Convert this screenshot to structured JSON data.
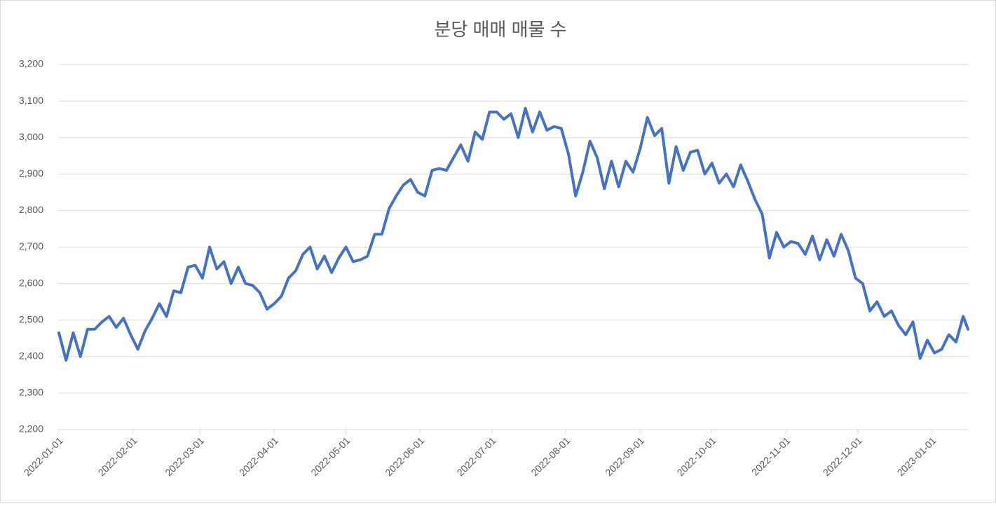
{
  "chart_data": {
    "type": "line",
    "title": "분당 매매 매물 수",
    "x": [
      "2022-01-01",
      "2022-01-04",
      "2022-01-07",
      "2022-01-10",
      "2022-01-13",
      "2022-01-16",
      "2022-01-19",
      "2022-01-22",
      "2022-01-25",
      "2022-01-28",
      "2022-01-31",
      "2022-02-03",
      "2022-02-06",
      "2022-02-09",
      "2022-02-12",
      "2022-02-15",
      "2022-02-18",
      "2022-02-21",
      "2022-02-24",
      "2022-02-27",
      "2022-03-02",
      "2022-03-05",
      "2022-03-08",
      "2022-03-11",
      "2022-03-14",
      "2022-03-17",
      "2022-03-20",
      "2022-03-23",
      "2022-03-26",
      "2022-03-29",
      "2022-04-01",
      "2022-04-04",
      "2022-04-07",
      "2022-04-10",
      "2022-04-13",
      "2022-04-16",
      "2022-04-19",
      "2022-04-22",
      "2022-04-25",
      "2022-04-28",
      "2022-05-01",
      "2022-05-04",
      "2022-05-07",
      "2022-05-10",
      "2022-05-13",
      "2022-05-16",
      "2022-05-19",
      "2022-05-22",
      "2022-05-25",
      "2022-05-28",
      "2022-05-31",
      "2022-06-03",
      "2022-06-06",
      "2022-06-09",
      "2022-06-12",
      "2022-06-15",
      "2022-06-18",
      "2022-06-21",
      "2022-06-24",
      "2022-06-27",
      "2022-06-30",
      "2022-07-03",
      "2022-07-06",
      "2022-07-09",
      "2022-07-12",
      "2022-07-15",
      "2022-07-18",
      "2022-07-21",
      "2022-07-24",
      "2022-07-27",
      "2022-07-30",
      "2022-08-02",
      "2022-08-05",
      "2022-08-08",
      "2022-08-11",
      "2022-08-14",
      "2022-08-17",
      "2022-08-20",
      "2022-08-23",
      "2022-08-26",
      "2022-08-29",
      "2022-09-01",
      "2022-09-04",
      "2022-09-07",
      "2022-09-10",
      "2022-09-13",
      "2022-09-16",
      "2022-09-19",
      "2022-09-22",
      "2022-09-25",
      "2022-09-28",
      "2022-10-01",
      "2022-10-04",
      "2022-10-07",
      "2022-10-10",
      "2022-10-13",
      "2022-10-16",
      "2022-10-19",
      "2022-10-22",
      "2022-10-25",
      "2022-10-28",
      "2022-10-31",
      "2022-11-03",
      "2022-11-06",
      "2022-11-09",
      "2022-11-12",
      "2022-11-15",
      "2022-11-18",
      "2022-11-21",
      "2022-11-24",
      "2022-11-27",
      "2022-11-30",
      "2022-12-03",
      "2022-12-06",
      "2022-12-09",
      "2022-12-12",
      "2022-12-15",
      "2022-12-18",
      "2022-12-21",
      "2022-12-24",
      "2022-12-27",
      "2022-12-30",
      "2023-01-02",
      "2023-01-05",
      "2023-01-08",
      "2023-01-11",
      "2023-01-14",
      "2023-01-16"
    ],
    "values": [
      2465,
      2390,
      2465,
      2400,
      2475,
      2475,
      2495,
      2510,
      2480,
      2505,
      2460,
      2420,
      2470,
      2505,
      2545,
      2510,
      2580,
      2575,
      2645,
      2650,
      2615,
      2700,
      2640,
      2660,
      2600,
      2645,
      2600,
      2595,
      2575,
      2530,
      2545,
      2565,
      2615,
      2635,
      2680,
      2700,
      2640,
      2675,
      2630,
      2670,
      2700,
      2660,
      2665,
      2675,
      2735,
      2735,
      2805,
      2840,
      2870,
      2885,
      2850,
      2840,
      2910,
      2915,
      2910,
      2945,
      2980,
      2935,
      3015,
      2995,
      3070,
      3070,
      3050,
      3065,
      3000,
      3080,
      3015,
      3070,
      3020,
      3030,
      3025,
      2955,
      2840,
      2905,
      2990,
      2945,
      2860,
      2935,
      2865,
      2935,
      2905,
      2970,
      3055,
      3005,
      3025,
      2875,
      2975,
      2910,
      2960,
      2965,
      2900,
      2930,
      2875,
      2900,
      2865,
      2925,
      2880,
      2830,
      2790,
      2670,
      2740,
      2700,
      2715,
      2710,
      2680,
      2730,
      2665,
      2720,
      2675,
      2735,
      2690,
      2615,
      2600,
      2525,
      2550,
      2510,
      2525,
      2485,
      2460,
      2495,
      2395,
      2445,
      2410,
      2420,
      2460,
      2440,
      2510,
      2475
    ],
    "color": "#4472c4",
    "xlim": [
      "2022-01-01",
      "2023-01-16"
    ],
    "xticks": [
      "2022-01-01",
      "2022-02-01",
      "2022-03-01",
      "2022-04-01",
      "2022-05-01",
      "2022-06-01",
      "2022-07-01",
      "2022-08-01",
      "2022-09-01",
      "2022-10-01",
      "2022-11-01",
      "2022-12-01",
      "2023-01-01"
    ],
    "ylim": [
      2200,
      3200
    ],
    "yticks": [
      {
        "value": 2200,
        "label": "2,200"
      },
      {
        "value": 2300,
        "label": "2,300"
      },
      {
        "value": 2400,
        "label": "2,400"
      },
      {
        "value": 2500,
        "label": "2,500"
      },
      {
        "value": 2600,
        "label": "2,600"
      },
      {
        "value": 2700,
        "label": "2,700"
      },
      {
        "value": 2800,
        "label": "2,800"
      },
      {
        "value": 2900,
        "label": "2,900"
      },
      {
        "value": 3000,
        "label": "3,000"
      },
      {
        "value": 3100,
        "label": "3,100"
      },
      {
        "value": 3200,
        "label": "3,200"
      }
    ],
    "grid": true
  }
}
